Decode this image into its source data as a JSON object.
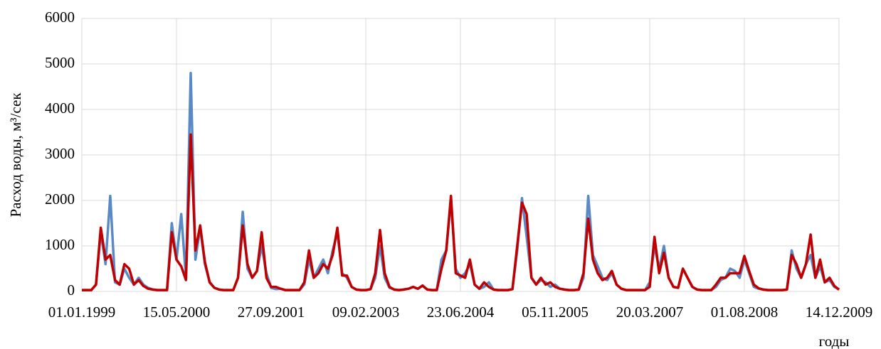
{
  "chart_data": {
    "type": "line",
    "y_label": "Расход воды, м³/сек",
    "x_label": "годы",
    "categories": [
      "01.01.1999",
      null,
      null,
      null,
      null,
      null,
      null,
      null,
      null,
      null,
      null,
      null,
      null,
      null,
      null,
      null,
      null,
      null,
      null,
      null,
      "15.05.2000",
      null,
      null,
      null,
      null,
      null,
      null,
      null,
      null,
      null,
      null,
      null,
      null,
      null,
      null,
      null,
      null,
      null,
      null,
      null,
      "27.09.2001",
      null,
      null,
      null,
      null,
      null,
      null,
      null,
      null,
      null,
      null,
      null,
      null,
      null,
      null,
      null,
      null,
      null,
      null,
      null,
      "09.02.2003",
      null,
      null,
      null,
      null,
      null,
      null,
      null,
      null,
      null,
      null,
      null,
      null,
      null,
      null,
      null,
      null,
      null,
      null,
      null,
      "23.06.2004",
      null,
      null,
      null,
      null,
      null,
      null,
      null,
      null,
      null,
      null,
      null,
      null,
      null,
      null,
      null,
      null,
      null,
      null,
      null,
      "05.11.2005",
      null,
      null,
      null,
      null,
      null,
      null,
      null,
      null,
      null,
      null,
      null,
      null,
      null,
      null,
      null,
      null,
      null,
      null,
      null,
      "20.03.2007",
      null,
      null,
      null,
      null,
      null,
      null,
      null,
      null,
      null,
      null,
      null,
      null,
      null,
      null,
      null,
      null,
      null,
      null,
      null,
      "01.08.2008",
      null,
      null,
      null,
      null,
      null,
      null,
      null,
      null,
      null,
      null,
      null,
      null,
      null,
      null,
      null,
      null,
      null,
      null,
      null,
      "14.12.2009"
    ],
    "series": [
      {
        "color": "#5a8ac6",
        "values": [
          30,
          30,
          30,
          150,
          1300,
          600,
          2100,
          200,
          150,
          500,
          300,
          150,
          300,
          150,
          80,
          40,
          30,
          30,
          30,
          1500,
          700,
          1700,
          300,
          4800,
          700,
          1400,
          600,
          200,
          80,
          40,
          30,
          30,
          30,
          300,
          1750,
          500,
          300,
          450,
          1000,
          400,
          80,
          50,
          60,
          30,
          30,
          30,
          30,
          150,
          700,
          300,
          500,
          700,
          400,
          900,
          1300,
          400,
          300,
          100,
          40,
          30,
          30,
          50,
          300,
          1000,
          300,
          80,
          40,
          30,
          40,
          60,
          100,
          60,
          120,
          40,
          30,
          30,
          700,
          900,
          2000,
          500,
          300,
          400,
          600,
          150,
          60,
          100,
          200,
          40,
          30,
          30,
          30,
          50,
          900,
          2050,
          1200,
          300,
          150,
          250,
          200,
          100,
          150,
          60,
          40,
          30,
          30,
          40,
          300,
          2100,
          800,
          550,
          300,
          250,
          400,
          150,
          60,
          30,
          30,
          30,
          30,
          30,
          200,
          1000,
          500,
          1000,
          300,
          100,
          80,
          500,
          300,
          100,
          40,
          30,
          30,
          30,
          100,
          250,
          300,
          500,
          450,
          300,
          700,
          400,
          100,
          60,
          40,
          30,
          30,
          30,
          30,
          40,
          900,
          500,
          300,
          600,
          800,
          300,
          550,
          200,
          250,
          100,
          40
        ]
      },
      {
        "color": "#c00000",
        "values": [
          30,
          30,
          30,
          150,
          1400,
          700,
          800,
          250,
          150,
          600,
          500,
          150,
          250,
          120,
          60,
          40,
          30,
          30,
          30,
          1300,
          700,
          550,
          250,
          3450,
          900,
          1450,
          650,
          200,
          80,
          40,
          30,
          30,
          30,
          300,
          1450,
          600,
          300,
          450,
          1300,
          300,
          100,
          100,
          60,
          30,
          30,
          30,
          30,
          200,
          900,
          300,
          400,
          600,
          500,
          800,
          1400,
          350,
          350,
          100,
          40,
          30,
          30,
          50,
          400,
          1350,
          400,
          100,
          40,
          30,
          40,
          60,
          100,
          60,
          130,
          40,
          30,
          30,
          500,
          900,
          2100,
          400,
          350,
          300,
          700,
          150,
          60,
          200,
          100,
          40,
          30,
          30,
          30,
          50,
          1000,
          1950,
          1700,
          300,
          150,
          300,
          150,
          200,
          100,
          60,
          40,
          30,
          30,
          40,
          400,
          1600,
          700,
          400,
          250,
          300,
          450,
          150,
          60,
          30,
          30,
          30,
          30,
          30,
          100,
          1200,
          400,
          850,
          300,
          100,
          80,
          500,
          300,
          100,
          40,
          30,
          30,
          30,
          150,
          300,
          300,
          400,
          400,
          400,
          780,
          450,
          150,
          70,
          40,
          30,
          30,
          30,
          30,
          40,
          800,
          600,
          300,
          600,
          1250,
          300,
          700,
          200,
          300,
          120,
          40
        ]
      }
    ],
    "ylim": [
      0,
      6000
    ],
    "yticks": [
      0,
      1000,
      2000,
      3000,
      4000,
      5000,
      6000
    ],
    "grid": true
  }
}
